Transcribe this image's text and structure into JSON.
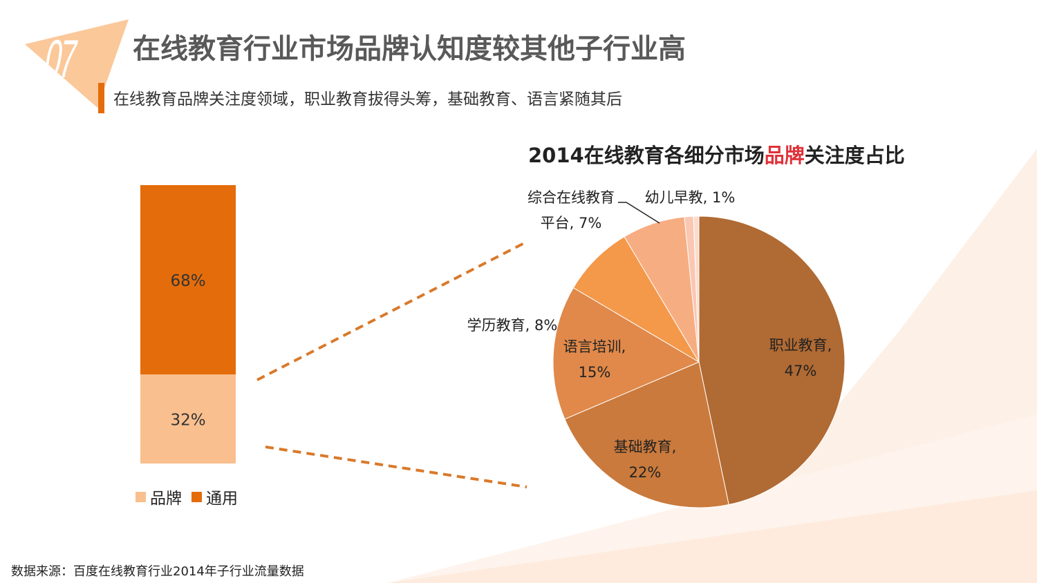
{
  "header": {
    "number": "07",
    "title": "在线教育行业市场品牌认知度较其他子行业高",
    "subtitle": "在线教育品牌关注度领域，职业教育拔得头筹，基础教育、语言紧随其后"
  },
  "colors": {
    "accent": "#e46c0a",
    "highlight": "#e0323a",
    "badge": "#fbc89a"
  },
  "footer": {
    "source": "数据来源：百度在线教育行业2014年子行业流量数据"
  },
  "chart_data": [
    {
      "type": "bar",
      "stacked": true,
      "title": "",
      "categories": [
        ""
      ],
      "ylim": [
        0,
        100
      ],
      "series": [
        {
          "name": "品牌",
          "values": [
            32
          ],
          "label": "32%",
          "color": "#f9bf8f"
        },
        {
          "name": "通用",
          "values": [
            68
          ],
          "label": "68%",
          "color": "#e46c0a"
        }
      ],
      "legend": "bottom"
    },
    {
      "type": "pie",
      "title_parts": [
        "2014在线教育各细分市场",
        "品牌",
        "关注度占比"
      ],
      "slices": [
        {
          "name": "职业教育",
          "value": 47,
          "label_lines": [
            "职业教育,",
            "47%"
          ],
          "color": "#b06a33"
        },
        {
          "name": "基础教育",
          "value": 22,
          "label_lines": [
            "基础教育,",
            "22%"
          ],
          "color": "#ca7a3c"
        },
        {
          "name": "语言培训",
          "value": 15,
          "label_lines": [
            "语言培训,",
            "15%"
          ],
          "color": "#e0894a"
        },
        {
          "name": "学历教育",
          "value": 8,
          "label_lines": [
            "学历教育, 8%"
          ],
          "color": "#f4984a"
        },
        {
          "name": "综合在线教育平台",
          "value": 7,
          "label_lines": [
            "综合在线教育",
            "平台, 7%"
          ],
          "color": "#f7ad82"
        },
        {
          "name": "幼儿早教",
          "value": 1,
          "label_lines": [
            "幼儿早教, 1%"
          ],
          "color": "#f9c7b2"
        }
      ],
      "extra_slice": {
        "value": 0.6,
        "color": "#fbdccc"
      }
    }
  ]
}
